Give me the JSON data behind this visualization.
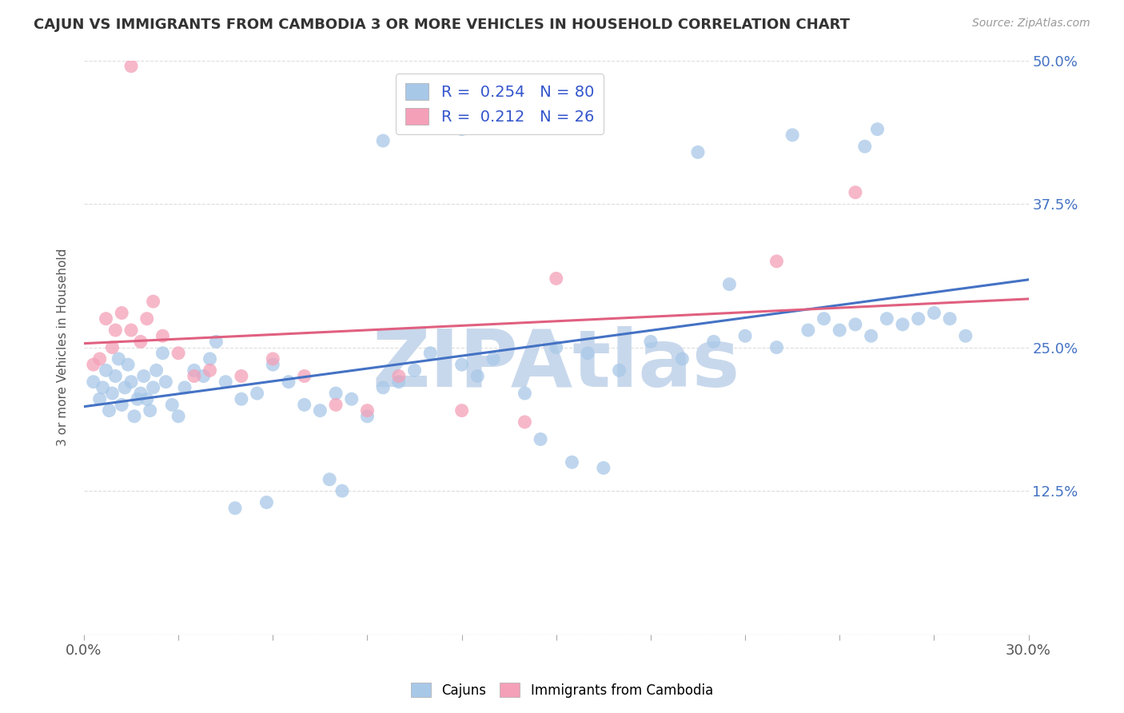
{
  "title": "CAJUN VS IMMIGRANTS FROM CAMBODIA 3 OR MORE VEHICLES IN HOUSEHOLD CORRELATION CHART",
  "source": "Source: ZipAtlas.com",
  "ylabel": "3 or more Vehicles in Household",
  "ytick_labels": [
    "",
    "12.5%",
    "25.0%",
    "37.5%",
    "50.0%"
  ],
  "ytick_values": [
    0.0,
    12.5,
    25.0,
    37.5,
    50.0
  ],
  "xmin": 0.0,
  "xmax": 30.0,
  "ymin": 0.0,
  "ymax": 50.0,
  "blue_color": "#a8c8e8",
  "pink_color": "#f4a0b8",
  "blue_line_color": "#4472c4",
  "pink_line_color": "#e06080",
  "legend_text_color": "#3355cc",
  "R_blue": 0.254,
  "N_blue": 80,
  "R_pink": 0.212,
  "N_pink": 26,
  "blue_line_y0": 20.0,
  "blue_line_y1": 27.0,
  "pink_line_y0": 23.0,
  "pink_line_y1": 28.5,
  "watermark": "ZIPAtlas",
  "watermark_color": "#c8d8ec",
  "background_color": "#ffffff",
  "grid_color": "#dddddd",
  "cajun_x": [
    0.3,
    0.5,
    0.6,
    0.7,
    0.8,
    0.9,
    1.0,
    1.1,
    1.2,
    1.3,
    1.4,
    1.5,
    1.6,
    1.7,
    1.8,
    1.9,
    2.0,
    2.1,
    2.2,
    2.3,
    2.5,
    2.6,
    2.8,
    3.0,
    3.2,
    3.5,
    3.8,
    4.0,
    4.2,
    4.5,
    5.0,
    5.5,
    6.0,
    6.5,
    7.0,
    7.5,
    8.0,
    8.5,
    9.0,
    9.5,
    10.0,
    10.5,
    11.0,
    12.0,
    12.5,
    13.0,
    14.0,
    15.0,
    16.0,
    17.0,
    18.0,
    19.0,
    20.0,
    21.0,
    22.0,
    23.0,
    23.5,
    24.0,
    24.5,
    25.0,
    25.5,
    26.0,
    26.5,
    27.0,
    27.5,
    28.0,
    9.5,
    12.0,
    19.5,
    20.5,
    22.5,
    24.8,
    25.2,
    14.5,
    15.5,
    16.5,
    7.8,
    8.2,
    4.8,
    5.8
  ],
  "cajun_y": [
    22.0,
    20.5,
    21.5,
    23.0,
    19.5,
    21.0,
    22.5,
    24.0,
    20.0,
    21.5,
    23.5,
    22.0,
    19.0,
    20.5,
    21.0,
    22.5,
    20.5,
    19.5,
    21.5,
    23.0,
    24.5,
    22.0,
    20.0,
    19.0,
    21.5,
    23.0,
    22.5,
    24.0,
    25.5,
    22.0,
    20.5,
    21.0,
    23.5,
    22.0,
    20.0,
    19.5,
    21.0,
    20.5,
    19.0,
    21.5,
    22.0,
    23.0,
    24.5,
    23.5,
    22.5,
    24.0,
    21.0,
    25.0,
    24.5,
    23.0,
    25.5,
    24.0,
    25.5,
    26.0,
    25.0,
    26.5,
    27.5,
    26.5,
    27.0,
    26.0,
    27.5,
    27.0,
    27.5,
    28.0,
    27.5,
    26.0,
    43.0,
    44.0,
    42.0,
    30.5,
    43.5,
    42.5,
    44.0,
    17.0,
    15.0,
    14.5,
    13.5,
    12.5,
    11.0,
    11.5
  ],
  "cambodia_x": [
    0.3,
    0.5,
    0.7,
    0.9,
    1.0,
    1.2,
    1.5,
    1.8,
    2.0,
    2.2,
    2.5,
    3.0,
    3.5,
    4.0,
    5.0,
    6.0,
    7.0,
    8.0,
    9.0,
    10.0,
    12.0,
    14.0,
    15.0,
    22.0,
    24.5,
    1.5
  ],
  "cambodia_y": [
    23.5,
    24.0,
    27.5,
    25.0,
    26.5,
    28.0,
    26.5,
    25.5,
    27.5,
    29.0,
    26.0,
    24.5,
    22.5,
    23.0,
    22.5,
    24.0,
    22.5,
    20.0,
    19.5,
    22.5,
    19.5,
    18.5,
    31.0,
    32.5,
    38.5,
    49.5
  ]
}
